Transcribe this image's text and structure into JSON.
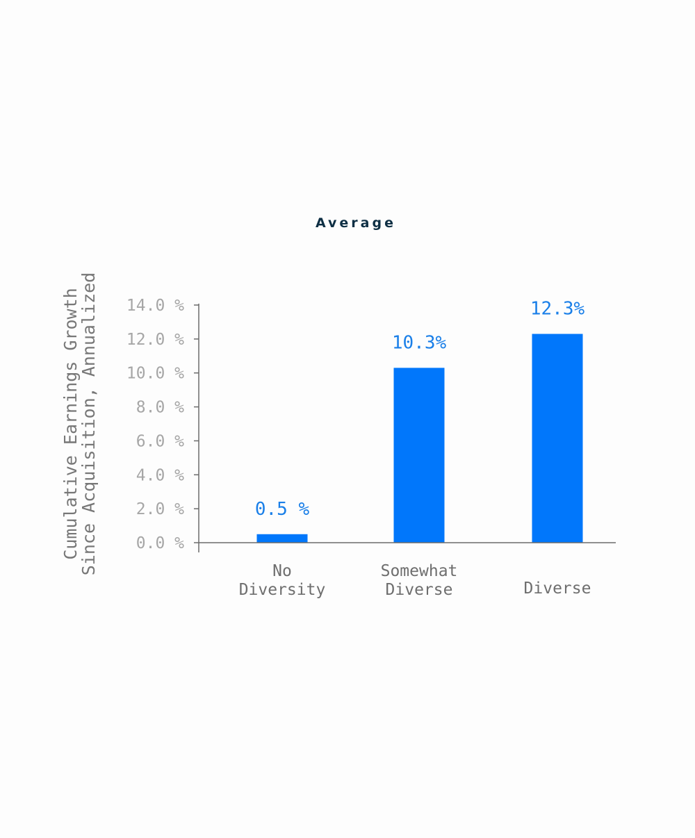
{
  "chart_data": {
    "type": "bar",
    "title": "Average",
    "ylabel_lines": [
      "Cumulative Earnings Growth",
      "Since Acquisition, Annualized"
    ],
    "xlabel": "",
    "categories": [
      {
        "lines": [
          "No",
          "Diversity"
        ]
      },
      {
        "lines": [
          "Somewhat",
          "Diverse"
        ]
      },
      {
        "lines": [
          "Diverse"
        ]
      }
    ],
    "values": [
      0.5,
      10.3,
      12.3
    ],
    "value_labels": [
      "0.5 %",
      "10.3%",
      "12.3%"
    ],
    "ylim": [
      0,
      14
    ],
    "y_ticks": [
      0,
      2,
      4,
      6,
      8,
      10,
      12,
      14
    ],
    "y_tick_labels": [
      "0.0 %",
      "2.0 %",
      "4.0 %",
      "6.0 %",
      "8.0 %",
      "10.0 %",
      "12.0 %",
      "14.0 %"
    ],
    "grid": false,
    "legend": "none"
  },
  "colors": {
    "bar": "#0177fb",
    "data_label": "#1a7fe8",
    "title": "#0e2f44",
    "tick_label": "#a6a6a6",
    "axis_title": "#777777",
    "category_label": "#6e6e6e",
    "axis_line": "#6b6b6b"
  }
}
